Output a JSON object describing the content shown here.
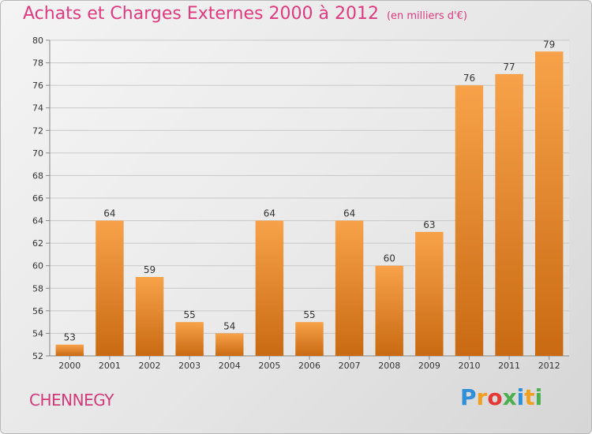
{
  "header": {
    "title": "Achats et Charges Externes 2000 à 2012",
    "unit": "(en milliers d'€)"
  },
  "footer": {
    "commune": "CHENNEGY",
    "logo_text": "Proxiti",
    "logo_letters": [
      "P",
      "r",
      "o",
      "x",
      "i",
      "t",
      "i"
    ],
    "logo_colors": [
      "#2f8fd8",
      "#f0a020",
      "#e53935",
      "#4caf50",
      "#2f8fd8",
      "#f0a020",
      "#4caf50"
    ]
  },
  "chart_data": {
    "type": "bar",
    "title": "Achats et Charges Externes 2000 à 2012",
    "categories": [
      "2000",
      "2001",
      "2002",
      "2003",
      "2004",
      "2005",
      "2006",
      "2007",
      "2008",
      "2009",
      "2010",
      "2011",
      "2012"
    ],
    "values": [
      53,
      64,
      59,
      55,
      54,
      64,
      55,
      64,
      60,
      63,
      76,
      77,
      79
    ],
    "ylim": [
      52,
      80
    ],
    "yticks": [
      52,
      54,
      56,
      58,
      60,
      62,
      64,
      66,
      68,
      70,
      72,
      74,
      76,
      78,
      80
    ],
    "grid": true,
    "bar_color": "#f0922e"
  }
}
